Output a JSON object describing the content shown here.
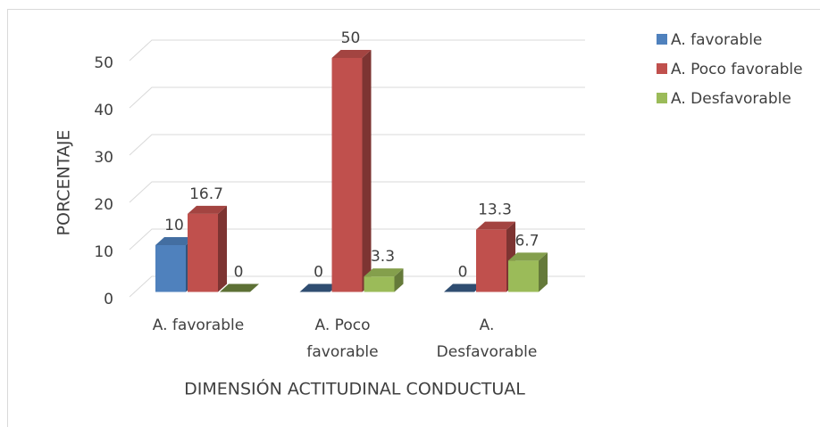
{
  "chart_data": {
    "type": "bar3d",
    "x_label": "DIMENSIÓN ACTITUDINAL CONDUCTUAL",
    "y_label": "PORCENTAJE",
    "categories": [
      "A. favorable",
      "A. Poco favorable",
      "A. Desfavorable"
    ],
    "series": [
      {
        "name": "A. favorable",
        "color": "#4f81bd",
        "values": [
          10,
          0,
          0
        ]
      },
      {
        "name": "A. Poco favorable",
        "color": "#c0504d",
        "values": [
          16.7,
          50,
          13.3
        ]
      },
      {
        "name": "A. Desfavorable",
        "color": "#9bbb59",
        "values": [
          0,
          3.3,
          6.7
        ]
      }
    ],
    "ylim": [
      0,
      50
    ],
    "yticks": [
      0,
      10,
      20,
      30,
      40,
      50
    ],
    "grid": true,
    "legend": "right"
  }
}
